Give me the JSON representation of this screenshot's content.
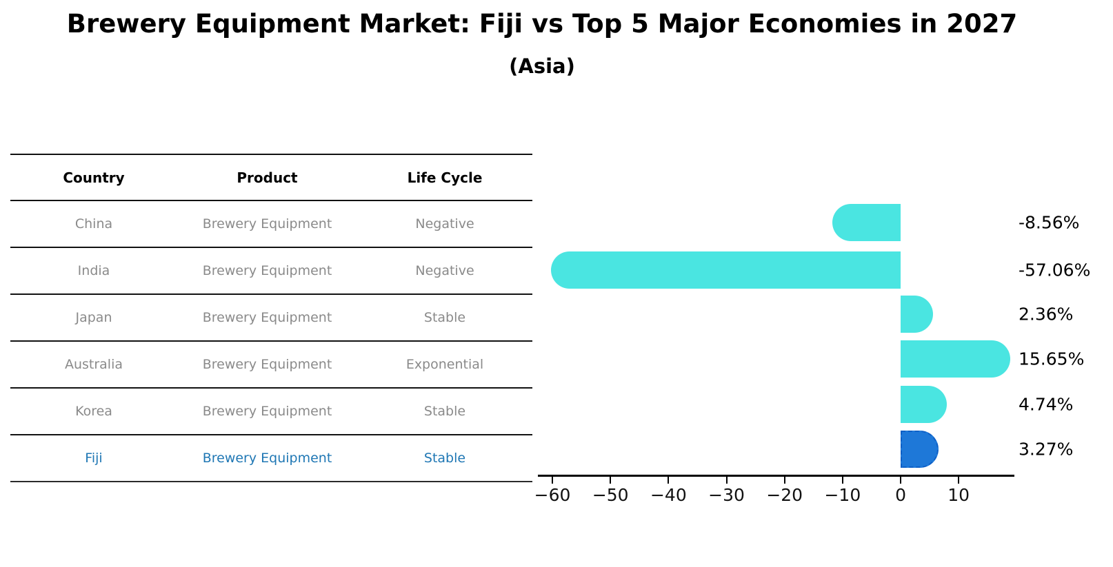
{
  "title": "Brewery Equipment Market: Fiji vs Top 5 Major Economies in 2027",
  "subtitle": "(Asia)",
  "table": {
    "headers": [
      "Country",
      "Product",
      "Life Cycle"
    ],
    "rows": [
      {
        "country": "China",
        "product": "Brewery Equipment",
        "life_cycle": "Negative",
        "highlight": false
      },
      {
        "country": "India",
        "product": "Brewery Equipment",
        "life_cycle": "Negative",
        "highlight": false
      },
      {
        "country": "Japan",
        "product": "Brewery Equipment",
        "life_cycle": "Stable",
        "highlight": false
      },
      {
        "country": "Australia",
        "product": "Brewery Equipment",
        "life_cycle": "Exponential",
        "highlight": false
      },
      {
        "country": "Korea",
        "product": "Brewery Equipment",
        "life_cycle": "Stable",
        "highlight": false
      },
      {
        "country": "Fiji",
        "product": "Brewery Equipment",
        "life_cycle": "Stable",
        "highlight": true
      }
    ]
  },
  "chart_data": {
    "type": "bar",
    "orientation": "horizontal",
    "title": "Brewery Equipment Market: Fiji vs Top 5 Major Economies in 2027 (Asia)",
    "categories": [
      "China",
      "India",
      "Japan",
      "Australia",
      "Korea",
      "Fiji"
    ],
    "values": [
      -8.56,
      -57.06,
      2.36,
      15.65,
      4.74,
      3.27
    ],
    "labels": [
      "-8.56%",
      "-57.06%",
      "2.36%",
      "15.65%",
      "4.74%",
      "3.27%"
    ],
    "xticks": [
      -60,
      -50,
      -40,
      -30,
      -20,
      -10,
      0,
      10
    ],
    "xtick_labels": [
      "−60",
      "−50",
      "−40",
      "−30",
      "−20",
      "−10",
      "0",
      "10"
    ],
    "xlim": [
      -62.5,
      19.6
    ],
    "grid": false,
    "legend": "none",
    "bar_color": "#4AE5E1",
    "highlight_color": "#1E78D8",
    "highlight_index": 5,
    "highlight_text_color": "#1f77b4"
  }
}
